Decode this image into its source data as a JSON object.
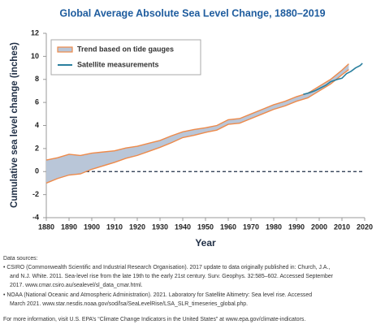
{
  "chart_data": {
    "type": "line",
    "title": "Global Average Absolute Sea Level Change, 1880–2019",
    "x_label": "Year",
    "y_label": "Cumulative sea level change (inches)",
    "xlim": [
      1880,
      2020
    ],
    "xticks": [
      1880,
      1890,
      1900,
      1910,
      1920,
      1930,
      1940,
      1950,
      1960,
      1970,
      1980,
      1990,
      2000,
      2010,
      2020
    ],
    "ylim": [
      -4,
      12
    ],
    "yticks": [
      -4,
      -2,
      0,
      2,
      4,
      6,
      8,
      10,
      12
    ],
    "legend": "upper left",
    "band_color": "#b9c6d8",
    "series": [
      {
        "name": "Trend based on tide gauges",
        "color": "#ee8a4a",
        "x": [
          1880,
          1885,
          1890,
          1895,
          1900,
          1905,
          1910,
          1915,
          1920,
          1925,
          1930,
          1935,
          1940,
          1945,
          1950,
          1955,
          1960,
          1965,
          1970,
          1975,
          1980,
          1985,
          1990,
          1995,
          2000,
          2005,
          2010,
          2013
        ],
        "values": [
          0.0,
          0.3,
          0.6,
          0.6,
          0.9,
          1.1,
          1.3,
          1.6,
          1.8,
          2.1,
          2.4,
          2.8,
          3.2,
          3.4,
          3.6,
          3.8,
          4.3,
          4.4,
          4.8,
          5.2,
          5.6,
          5.9,
          6.3,
          6.6,
          7.2,
          7.8,
          8.6,
          9.1
        ],
        "error": [
          1.0,
          0.9,
          0.9,
          0.8,
          0.7,
          0.6,
          0.5,
          0.45,
          0.4,
          0.35,
          0.3,
          0.3,
          0.25,
          0.25,
          0.2,
          0.2,
          0.2,
          0.2,
          0.2,
          0.2,
          0.2,
          0.2,
          0.2,
          0.2,
          0.2,
          0.2,
          0.2,
          0.25
        ]
      },
      {
        "name": "Satellite measurements",
        "color": "#2a7f9e",
        "x": [
          1993,
          1995,
          1998,
          2000,
          2003,
          2005,
          2008,
          2010,
          2012,
          2014,
          2016,
          2018,
          2019
        ],
        "values": [
          6.7,
          6.8,
          7.0,
          7.2,
          7.5,
          7.8,
          8.0,
          8.1,
          8.5,
          8.7,
          9.0,
          9.2,
          9.4
        ]
      }
    ],
    "notes": [
      "Data sources:",
      "• CSIRO (Commonwealth Scientific and Industrial Research Organisation). 2017 update to data originally published in: Church, J.A.,",
      "and N.J. White. 2011. Sea-level rise from the late 19th to the early 21st century. Surv. Geophys. 32:585–602. Accessed September",
      "2017. www.cmar.csiro.au/sealevel/sl_data_cmar.html.",
      "• NOAA (National Oceanic and Atmospheric Administration). 2021. Laboratory for Satellite Altimetry: Sea level rise. Accessed",
      "March 2021. www.star.nesdis.noaa.gov/sod/lsa/SeaLevelRise/LSA_SLR_timeseries_global.php.",
      "For more information, visit U.S. EPA’s “Climate Change Indicators in the United States” at www.epa.gov/climate-indicators."
    ]
  }
}
